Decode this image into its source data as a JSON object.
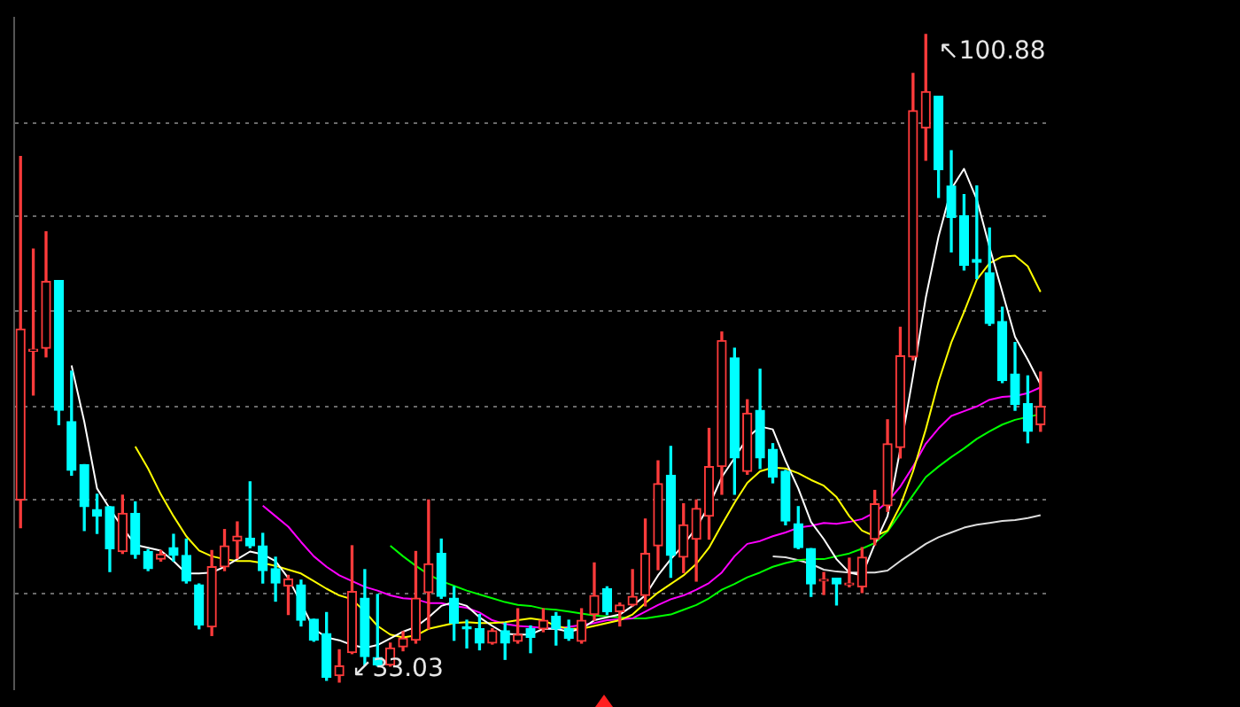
{
  "chart_data": {
    "type": "candlestick",
    "categories": [
      null,
      null,
      null,
      null,
      null,
      null,
      null,
      null,
      null,
      null,
      null,
      null,
      null,
      null,
      null,
      null,
      null,
      null,
      null,
      null,
      null,
      null,
      null,
      null,
      null,
      null,
      null,
      null,
      null,
      null,
      null,
      null,
      null,
      null,
      null,
      null,
      null,
      null,
      null,
      null,
      null,
      null,
      null,
      null,
      null,
      null,
      null,
      null,
      null,
      null,
      null,
      null,
      null,
      null,
      null,
      null,
      null,
      null,
      null,
      null,
      null,
      null,
      null,
      null,
      null,
      null,
      null,
      null,
      null,
      null,
      null,
      null,
      null,
      null,
      null,
      null,
      null,
      null,
      null,
      null,
      null
    ],
    "ohlc": [
      [
        52.1,
        88.1,
        49.2,
        70.0
      ],
      [
        67.7,
        78.4,
        63.1,
        67.9
      ],
      [
        68.0,
        80.2,
        67.1,
        75.0
      ],
      [
        75.1,
        75.1,
        60.0,
        61.5
      ],
      [
        60.3,
        65.6,
        54.7,
        55.2
      ],
      [
        55.8,
        55.8,
        48.9,
        51.4
      ],
      [
        51.1,
        52.7,
        48.6,
        50.4
      ],
      [
        51.4,
        51.4,
        44.6,
        47.0
      ],
      [
        46.7,
        52.6,
        46.5,
        50.7
      ],
      [
        50.7,
        51.9,
        46.0,
        46.4
      ],
      [
        46.7,
        46.9,
        44.7,
        44.9
      ],
      [
        45.9,
        46.8,
        45.7,
        46.4
      ],
      [
        47.1,
        48.5,
        45.7,
        46.3
      ],
      [
        46.3,
        48.0,
        43.4,
        43.6
      ],
      [
        43.2,
        43.3,
        38.6,
        39.0
      ],
      [
        38.8,
        46.8,
        37.9,
        45.1
      ],
      [
        45.1,
        49.0,
        44.7,
        47.3
      ],
      [
        47.8,
        49.8,
        46.0,
        48.3
      ],
      [
        48.1,
        54.0,
        47.1,
        47.3
      ],
      [
        47.3,
        48.6,
        43.4,
        44.7
      ],
      [
        44.9,
        46.1,
        41.5,
        43.4
      ],
      [
        43.1,
        44.2,
        40.1,
        43.8
      ],
      [
        43.2,
        43.7,
        38.9,
        39.5
      ],
      [
        39.6,
        39.6,
        37.3,
        37.4
      ],
      [
        38.1,
        40.3,
        33.2,
        33.5
      ],
      [
        33.7,
        36.4,
        33.03,
        34.7
      ],
      [
        36.1,
        47.3,
        36.0,
        42.5
      ],
      [
        41.8,
        44.8,
        34.8,
        35.7
      ],
      [
        35.6,
        42.2,
        34.7,
        34.8
      ],
      [
        34.8,
        37.1,
        34.7,
        36.6
      ],
      [
        36.7,
        38.3,
        36.3,
        37.6
      ],
      [
        37.4,
        46.7,
        37.1,
        41.8
      ],
      [
        42.4,
        52.1,
        38.6,
        45.4
      ],
      [
        46.5,
        48.0,
        41.8,
        42.0
      ],
      [
        41.8,
        43.0,
        37.4,
        39.2
      ],
      [
        38.8,
        39.5,
        36.6,
        38.6
      ],
      [
        38.6,
        40.1,
        36.4,
        37.1
      ],
      [
        37.1,
        38.6,
        37.0,
        38.4
      ],
      [
        38.4,
        39.2,
        35.4,
        37.1
      ],
      [
        37.3,
        40.7,
        37.1,
        38.0
      ],
      [
        38.6,
        38.9,
        36.1,
        37.7
      ],
      [
        38.6,
        40.7,
        38.3,
        39.5
      ],
      [
        39.9,
        40.3,
        36.9,
        38.6
      ],
      [
        38.6,
        39.5,
        37.4,
        37.6
      ],
      [
        37.3,
        40.7,
        37.1,
        39.5
      ],
      [
        40.1,
        45.5,
        39.5,
        42.1
      ],
      [
        42.8,
        43.0,
        40.1,
        40.4
      ],
      [
        40.4,
        41.3,
        38.9,
        41.1
      ],
      [
        41.1,
        44.8,
        41.0,
        42.0
      ],
      [
        42.1,
        50.1,
        41.0,
        46.5
      ],
      [
        47.3,
        56.2,
        44.8,
        53.8
      ],
      [
        54.7,
        57.7,
        44.0,
        46.3
      ],
      [
        46.1,
        51.7,
        44.5,
        49.5
      ],
      [
        48.0,
        52.1,
        43.6,
        51.2
      ],
      [
        50.4,
        59.6,
        48.0,
        55.6
      ],
      [
        55.6,
        69.7,
        52.7,
        68.8
      ],
      [
        67.0,
        68.0,
        52.7,
        56.5
      ],
      [
        55.1,
        62.6,
        54.8,
        61.2
      ],
      [
        61.5,
        65.8,
        55.4,
        56.5
      ],
      [
        57.4,
        58.0,
        53.9,
        54.5
      ],
      [
        55.1,
        55.2,
        49.5,
        49.9
      ],
      [
        49.6,
        51.4,
        47.0,
        47.1
      ],
      [
        47.0,
        47.0,
        42.0,
        43.3
      ],
      [
        43.6,
        44.5,
        42.2,
        43.7
      ],
      [
        43.9,
        43.9,
        41.1,
        43.3
      ],
      [
        43.2,
        46.0,
        43.0,
        43.3
      ],
      [
        43.0,
        47.1,
        42.4,
        46.1
      ],
      [
        48.0,
        53.1,
        47.4,
        51.7
      ],
      [
        51.5,
        60.5,
        50.9,
        58.0
      ],
      [
        57.6,
        70.2,
        56.5,
        67.2
      ],
      [
        67.1,
        96.8,
        66.8,
        92.9
      ],
      [
        91.1,
        100.88,
        87.7,
        94.9
      ],
      [
        94.4,
        94.4,
        83.8,
        86.7
      ],
      [
        85.0,
        88.7,
        78.1,
        81.7
      ],
      [
        81.9,
        84.1,
        76.2,
        76.7
      ],
      [
        77.3,
        85.0,
        75.3,
        77.0
      ],
      [
        75.9,
        80.6,
        70.4,
        70.6
      ],
      [
        70.8,
        72.3,
        64.4,
        64.6
      ],
      [
        65.3,
        68.6,
        61.5,
        62.1
      ],
      [
        62.2,
        65.1,
        58.1,
        59.3
      ],
      [
        60.0,
        65.5,
        59.3,
        61.9
      ]
    ],
    "colors": [
      "#ff3b3b",
      "#ff3b3b",
      "#ff3b3b",
      "#00ffff",
      "#00ffff",
      "#00ffff",
      "#00ffff",
      "#00ffff",
      "#ff3b3b",
      "#00ffff",
      "#00ffff",
      "#ff3b3b",
      "#00ffff",
      "#00ffff",
      "#00ffff",
      "#ff3b3b",
      "#ff3b3b",
      "#ff3b3b",
      "#00ffff",
      "#00ffff",
      "#00ffff",
      "#ff3b3b",
      "#00ffff",
      "#00ffff",
      "#00ffff",
      "#ff3b3b",
      "#ff3b3b",
      "#00ffff",
      "#00ffff",
      "#ff3b3b",
      "#ff3b3b",
      "#ff3b3b",
      "#ff3b3b",
      "#00ffff",
      "#00ffff",
      "#00ffff",
      "#00ffff",
      "#ff3b3b",
      "#00ffff",
      "#ff3b3b",
      "#00ffff",
      "#ff3b3b",
      "#00ffff",
      "#00ffff",
      "#ff3b3b",
      "#ff3b3b",
      "#00ffff",
      "#ff3b3b",
      "#ff3b3b",
      "#ff3b3b",
      "#ff3b3b",
      "#00ffff",
      "#ff3b3b",
      "#ff3b3b",
      "#ff3b3b",
      "#ff3b3b",
      "#00ffff",
      "#ff3b3b",
      "#00ffff",
      "#00ffff",
      "#00ffff",
      "#00ffff",
      "#00ffff",
      "#ff3b3b",
      "#00ffff",
      "#ff3b3b",
      "#ff3b3b",
      "#ff3b3b",
      "#ff3b3b",
      "#ff3b3b",
      "#ff3b3b",
      "#ff3b3b",
      "#00ffff",
      "#00ffff",
      "#00ffff",
      "#00ffff",
      "#00ffff",
      "#00ffff",
      "#00ffff",
      "#00ffff",
      "#ff3b3b"
    ],
    "series": [
      {
        "type": "line",
        "color": "#ffffff",
        "values": [
          null,
          null,
          null,
          null,
          66.2,
          60.3,
          53.3,
          51.2,
          49.2,
          47.4,
          47.1,
          46.8,
          45.7,
          44.4,
          44.4,
          44.5,
          45.1,
          45.9,
          46.7,
          46.4,
          45.7,
          43.9,
          41.3,
          38.6,
          37.7,
          37.4,
          36.9,
          36.6,
          36.9,
          37.6,
          38.3,
          38.8,
          39.8,
          41.0,
          41.4,
          41.0,
          39.8,
          38.9,
          38.1,
          38.0,
          38.0,
          38.6,
          38.6,
          38.3,
          38.6,
          39.5,
          39.8,
          40.1,
          41.0,
          42.1,
          44.2,
          45.9,
          47.4,
          49.2,
          51.5,
          54.5,
          56.5,
          58.6,
          59.8,
          59.5,
          56.2,
          53.3,
          49.8,
          48.0,
          45.9,
          44.5,
          44.2,
          47.5,
          50.4,
          57.4,
          65.1,
          73.3,
          79.7,
          84.7,
          86.8,
          83.6,
          78.6,
          73.9,
          69.2,
          66.8,
          64.2
        ]
      },
      {
        "type": "line",
        "color": "#ffff00",
        "values": [
          null,
          null,
          null,
          null,
          null,
          null,
          null,
          null,
          null,
          57.7,
          55.4,
          52.7,
          50.4,
          48.3,
          46.8,
          46.2,
          45.9,
          45.7,
          45.7,
          45.5,
          45.2,
          44.8,
          44.4,
          43.6,
          42.8,
          42.1,
          41.7,
          40.4,
          38.9,
          38.0,
          37.7,
          37.9,
          38.6,
          38.9,
          39.2,
          39.3,
          39.2,
          39.2,
          39.3,
          39.5,
          39.7,
          39.5,
          38.9,
          38.6,
          38.6,
          38.9,
          39.2,
          39.5,
          40.1,
          41.3,
          42.4,
          43.3,
          44.2,
          45.4,
          47.1,
          49.5,
          51.8,
          53.9,
          55.1,
          55.5,
          55.4,
          54.9,
          54.2,
          53.6,
          52.4,
          50.4,
          48.9,
          48.3,
          48.9,
          51.5,
          55.1,
          59.5,
          64.5,
          68.6,
          71.8,
          75.2,
          76.9,
          77.6,
          77.7,
          76.6,
          73.9
        ]
      },
      {
        "type": "line",
        "color": "#ff00ff",
        "values": [
          null,
          null,
          null,
          null,
          null,
          null,
          null,
          null,
          null,
          null,
          null,
          null,
          null,
          null,
          null,
          null,
          null,
          null,
          null,
          51.5,
          50.4,
          49.3,
          47.7,
          46.2,
          45.1,
          44.2,
          43.6,
          43.0,
          42.6,
          42.1,
          41.8,
          41.7,
          41.3,
          41.3,
          41.0,
          40.8,
          40.3,
          39.5,
          39.1,
          38.9,
          38.8,
          38.7,
          38.6,
          38.8,
          39.0,
          39.2,
          39.5,
          39.6,
          39.7,
          40.4,
          41.1,
          41.7,
          42.1,
          42.7,
          43.4,
          44.5,
          46.2,
          47.5,
          47.8,
          48.3,
          48.7,
          49.2,
          49.4,
          49.7,
          49.6,
          49.8,
          50.1,
          50.8,
          51.9,
          53.5,
          55.6,
          58.0,
          59.6,
          60.9,
          61.4,
          61.9,
          62.6,
          62.9,
          63.0,
          63.3,
          63.9
        ]
      },
      {
        "type": "line",
        "color": "#00ff00",
        "values": [
          null,
          null,
          null,
          null,
          null,
          null,
          null,
          null,
          null,
          null,
          null,
          null,
          null,
          null,
          null,
          null,
          null,
          null,
          null,
          null,
          null,
          null,
          null,
          null,
          null,
          null,
          null,
          null,
          null,
          47.3,
          46.2,
          45.2,
          44.3,
          43.6,
          43.1,
          42.6,
          42.2,
          41.8,
          41.4,
          41.1,
          41.0,
          40.7,
          40.6,
          40.4,
          40.2,
          40.0,
          39.9,
          39.8,
          39.7,
          39.7,
          39.9,
          40.1,
          40.6,
          41.1,
          41.8,
          42.7,
          43.3,
          44.0,
          44.5,
          45.1,
          45.5,
          45.8,
          45.9,
          45.9,
          46.2,
          46.5,
          47.0,
          47.6,
          48.8,
          50.7,
          52.6,
          54.5,
          55.6,
          56.6,
          57.5,
          58.5,
          59.3,
          60.0,
          60.5,
          60.8,
          61.1
        ]
      },
      {
        "type": "line",
        "color": "#dddddd",
        "values": [
          null,
          null,
          null,
          null,
          null,
          null,
          null,
          null,
          null,
          null,
          null,
          null,
          null,
          null,
          null,
          null,
          null,
          null,
          null,
          null,
          null,
          null,
          null,
          null,
          null,
          null,
          null,
          null,
          null,
          null,
          null,
          null,
          null,
          null,
          null,
          null,
          null,
          null,
          null,
          null,
          null,
          null,
          null,
          null,
          null,
          null,
          null,
          null,
          null,
          null,
          null,
          null,
          null,
          null,
          null,
          null,
          null,
          null,
          null,
          46.2,
          46.1,
          45.8,
          45.4,
          44.8,
          44.6,
          44.5,
          44.5,
          44.5,
          44.7,
          45.7,
          46.6,
          47.5,
          48.2,
          48.7,
          49.2,
          49.5,
          49.7,
          49.9,
          50.0,
          50.2,
          50.5
        ]
      }
    ],
    "ylim": [
      32.3,
      102.6
    ],
    "yticks": [
      {
        "value": 42.3,
        "label": null
      },
      {
        "value": 52.1,
        "label": null
      },
      {
        "value": 61.9,
        "label": null
      },
      {
        "value": 71.9,
        "label": null
      },
      {
        "value": 81.8,
        "label": null
      },
      {
        "value": 91.6,
        "label": null
      }
    ],
    "grid": "y",
    "annotations": [
      "↖100.88",
      "↙33.03"
    ]
  }
}
